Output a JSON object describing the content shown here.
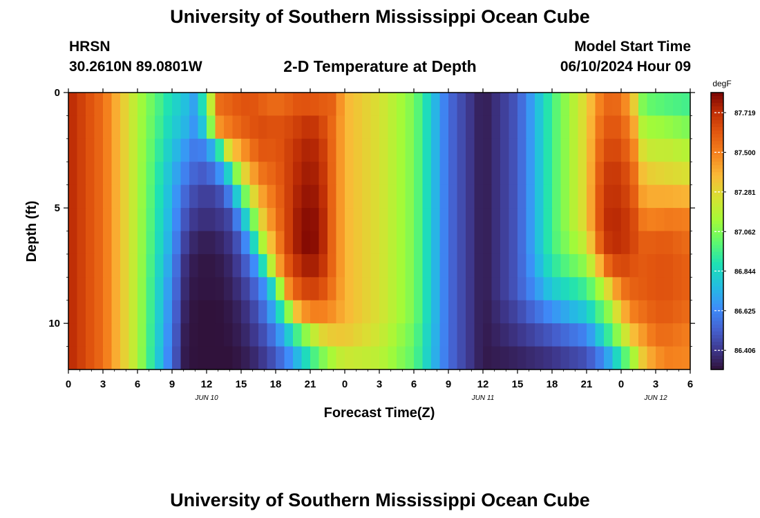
{
  "header": {
    "title": "University of Southern Mississippi Ocean Cube",
    "station": "HRSN",
    "coordinates": "30.2610N  89.0801W",
    "subtitle": "2-D Temperature at Depth",
    "model_start_label": "Model Start Time",
    "model_start_value": "06/10/2024 Hour 09"
  },
  "footer": {
    "title": "University of Southern Mississippi Ocean Cube"
  },
  "chart_data": {
    "type": "heatmap",
    "xlabel": "Forecast Time(Z)",
    "ylabel": "Depth (ft)",
    "x_tick_labels": [
      "0",
      "3",
      "6",
      "9",
      "12",
      "15",
      "18",
      "21",
      "0",
      "3",
      "6",
      "9",
      "12",
      "15",
      "18",
      "21",
      "0",
      "3",
      "6"
    ],
    "date_labels": [
      {
        "label": "JUN 10",
        "at_hour": 12
      },
      {
        "label": "JUN 11",
        "at_hour": 36
      },
      {
        "label": "JUN 12",
        "at_hour": 51
      }
    ],
    "x_range_hours": [
      0,
      54
    ],
    "y_ticks": [
      0,
      5,
      10
    ],
    "y_range_ft": [
      0,
      12
    ],
    "colorbar": {
      "unit": "degF",
      "tick_labels": [
        "87.719",
        "87.500",
        "87.281",
        "87.062",
        "86.844",
        "86.625",
        "86.406"
      ],
      "min": 86.3,
      "max": 87.83
    },
    "depth_rows_ft": [
      0.5,
      1.5,
      2.5,
      3.5,
      4.5,
      5.5,
      6.5,
      7.5,
      8.5,
      9.5,
      10.5,
      11.5
    ],
    "keyframe_hours": [
      0,
      3,
      6,
      9,
      10,
      11,
      12,
      13,
      14,
      15,
      16,
      17,
      18,
      19,
      20,
      21,
      22,
      23,
      24,
      27,
      30,
      33,
      36,
      39,
      42,
      45,
      46,
      47,
      48,
      49,
      50,
      51,
      52,
      54
    ],
    "temperature_degF": [
      [
        87.74,
        87.55,
        87.15,
        86.85,
        86.78,
        86.68,
        86.98,
        87.55,
        87.58,
        87.62,
        87.62,
        87.58,
        87.55,
        87.58,
        87.62,
        87.62,
        87.6,
        87.58,
        87.38,
        87.25,
        87.05,
        86.55,
        86.32,
        86.5,
        86.95,
        87.3,
        87.48,
        87.58,
        87.55,
        87.35,
        87.02,
        87.0,
        86.98,
        86.95
      ],
      [
        87.74,
        87.55,
        87.15,
        86.82,
        86.75,
        86.65,
        86.85,
        87.45,
        87.52,
        87.58,
        87.62,
        87.64,
        87.62,
        87.64,
        87.68,
        87.72,
        87.66,
        87.55,
        87.38,
        87.25,
        87.05,
        86.55,
        86.32,
        86.5,
        86.95,
        87.3,
        87.52,
        87.62,
        87.6,
        87.45,
        87.12,
        87.12,
        87.1,
        87.05
      ],
      [
        87.74,
        87.55,
        87.15,
        86.78,
        86.68,
        86.58,
        86.62,
        86.85,
        87.3,
        87.42,
        87.55,
        87.62,
        87.6,
        87.66,
        87.72,
        87.76,
        87.7,
        87.55,
        87.38,
        87.25,
        87.05,
        86.55,
        86.32,
        86.5,
        86.95,
        87.3,
        87.55,
        87.66,
        87.64,
        87.52,
        87.22,
        87.2,
        87.2,
        87.16
      ],
      [
        87.74,
        87.55,
        87.15,
        86.74,
        86.62,
        86.52,
        86.5,
        86.62,
        86.85,
        87.22,
        87.42,
        87.55,
        87.58,
        87.66,
        87.74,
        87.78,
        87.72,
        87.55,
        87.38,
        87.25,
        87.05,
        86.55,
        86.32,
        86.5,
        86.95,
        87.3,
        87.58,
        87.7,
        87.68,
        87.58,
        87.32,
        87.3,
        87.28,
        87.25
      ],
      [
        87.74,
        87.55,
        87.15,
        86.72,
        86.55,
        86.45,
        86.42,
        86.45,
        86.6,
        86.92,
        87.25,
        87.45,
        87.55,
        87.66,
        87.76,
        87.8,
        87.74,
        87.55,
        87.38,
        87.25,
        87.05,
        86.55,
        86.32,
        86.5,
        86.95,
        87.3,
        87.6,
        87.72,
        87.7,
        87.62,
        87.4,
        87.4,
        87.4,
        87.38
      ],
      [
        87.74,
        87.55,
        87.15,
        86.7,
        86.5,
        86.4,
        86.38,
        86.4,
        86.45,
        86.68,
        87.02,
        87.35,
        87.52,
        87.66,
        87.78,
        87.82,
        87.76,
        87.55,
        87.38,
        87.25,
        87.05,
        86.55,
        86.32,
        86.5,
        86.95,
        87.3,
        87.6,
        87.74,
        87.72,
        87.66,
        87.5,
        87.5,
        87.52,
        87.5
      ],
      [
        87.74,
        87.55,
        87.15,
        86.68,
        86.45,
        86.35,
        86.33,
        86.35,
        86.4,
        86.52,
        86.8,
        87.2,
        87.45,
        87.66,
        87.78,
        87.83,
        87.76,
        87.55,
        87.38,
        87.25,
        87.05,
        86.55,
        86.32,
        86.5,
        86.95,
        87.22,
        87.55,
        87.72,
        87.72,
        87.66,
        87.58,
        87.6,
        87.6,
        87.55
      ],
      [
        87.74,
        87.55,
        87.15,
        86.65,
        86.4,
        86.32,
        86.31,
        86.32,
        86.36,
        86.45,
        86.6,
        86.9,
        87.35,
        87.6,
        87.72,
        87.78,
        87.72,
        87.55,
        87.38,
        87.25,
        87.05,
        86.55,
        86.32,
        86.5,
        86.9,
        87.1,
        87.35,
        87.6,
        87.66,
        87.62,
        87.6,
        87.62,
        87.62,
        87.58
      ],
      [
        87.74,
        87.55,
        87.15,
        86.62,
        86.38,
        86.31,
        86.31,
        86.31,
        86.34,
        86.4,
        86.5,
        86.65,
        86.92,
        87.45,
        87.62,
        87.68,
        87.64,
        87.52,
        87.38,
        87.25,
        87.05,
        86.55,
        86.32,
        86.5,
        86.8,
        86.95,
        87.1,
        87.3,
        87.52,
        87.58,
        87.6,
        87.62,
        87.62,
        87.58
      ],
      [
        87.74,
        87.55,
        87.15,
        86.6,
        86.36,
        86.3,
        86.3,
        86.3,
        86.32,
        86.36,
        86.44,
        86.56,
        86.75,
        87.05,
        87.4,
        87.5,
        87.5,
        87.46,
        87.38,
        87.25,
        87.05,
        86.55,
        86.32,
        86.45,
        86.65,
        86.8,
        86.95,
        87.1,
        87.35,
        87.5,
        87.55,
        87.6,
        87.6,
        87.55
      ],
      [
        87.74,
        87.55,
        87.15,
        86.58,
        86.34,
        86.3,
        86.3,
        86.3,
        86.31,
        86.34,
        86.4,
        86.48,
        86.6,
        86.78,
        86.98,
        87.15,
        87.28,
        87.32,
        87.33,
        87.22,
        87.02,
        86.55,
        86.32,
        86.4,
        86.5,
        86.62,
        86.78,
        86.95,
        87.15,
        87.35,
        87.45,
        87.55,
        87.55,
        87.5
      ],
      [
        87.74,
        87.55,
        87.15,
        86.56,
        86.33,
        86.3,
        86.3,
        86.3,
        86.3,
        86.32,
        86.36,
        86.42,
        86.5,
        86.62,
        86.76,
        86.92,
        87.05,
        87.15,
        87.22,
        87.18,
        87.0,
        86.55,
        86.32,
        86.35,
        86.4,
        86.48,
        86.58,
        86.72,
        86.92,
        87.12,
        87.35,
        87.45,
        87.5,
        87.48
      ]
    ]
  }
}
